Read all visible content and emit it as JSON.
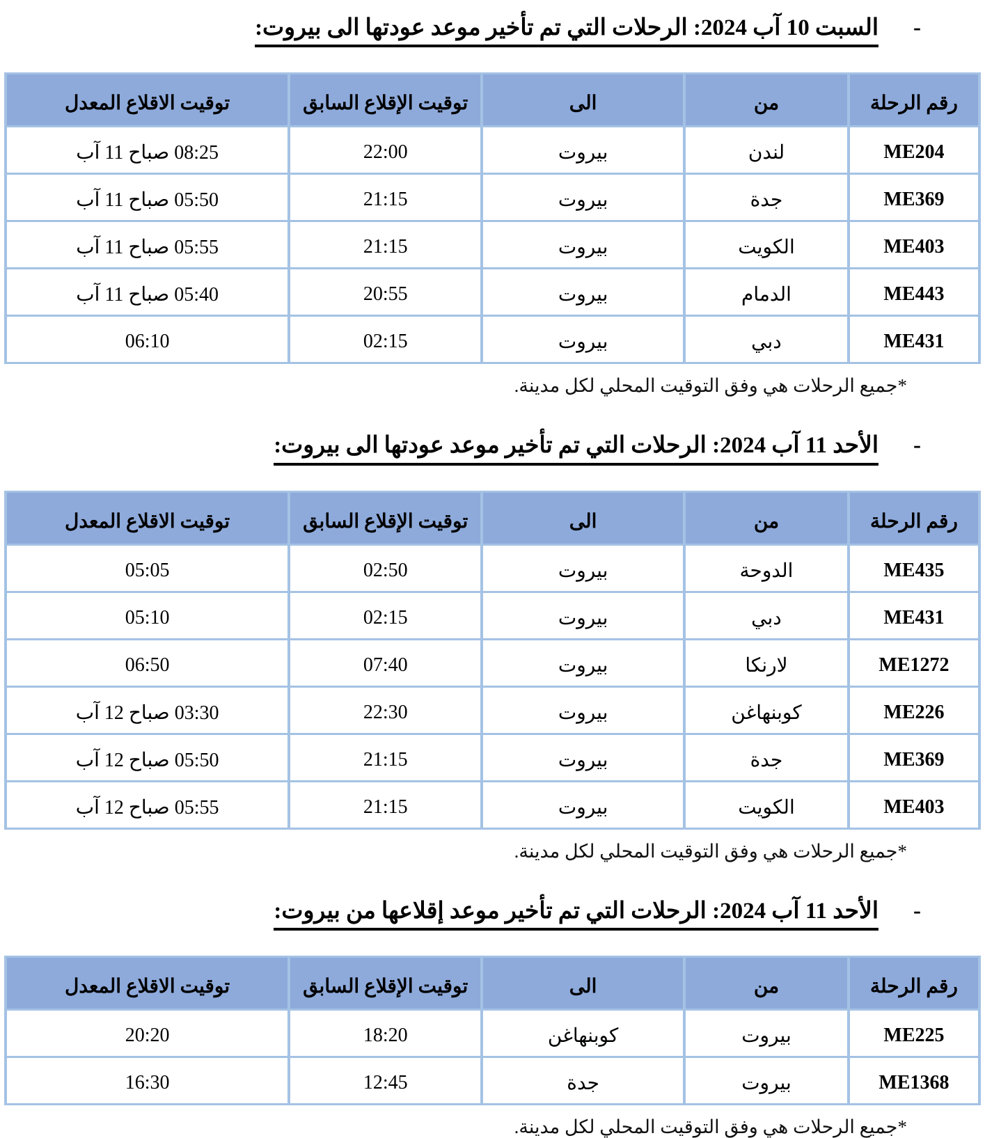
{
  "colors": {
    "header_bg": "#8EAADB",
    "border": "#A4C2E4"
  },
  "bullet": "-",
  "footnote": "*جميع الرحلات هي وفق التوقيت المحلي لكل مدينة.",
  "columns": [
    "رقم الرحلة",
    "من",
    "الى",
    "توقيت الإقلاع السابق",
    "توقيت الاقلاع المعدل"
  ],
  "sections": [
    {
      "heading": "السبت 10 آب 2024: الرحلات التي تم تأخير موعد عودتها الى بيروت:",
      "rows": [
        {
          "flight": "ME204",
          "from": "لندن",
          "to": "بيروت",
          "previous": "22:00",
          "revised": "08:25 صباح 11 آب"
        },
        {
          "flight": "ME369",
          "from": "جدة",
          "to": "بيروت",
          "previous": "21:15",
          "revised": "05:50 صباح 11 آب"
        },
        {
          "flight": "ME403",
          "from": "الكويت",
          "to": "بيروت",
          "previous": "21:15",
          "revised": "05:55 صباح 11 آب"
        },
        {
          "flight": "ME443",
          "from": "الدمام",
          "to": "بيروت",
          "previous": "20:55",
          "revised": "05:40 صباح 11 آب"
        },
        {
          "flight": "ME431",
          "from": "دبي",
          "to": "بيروت",
          "previous": "02:15",
          "revised": "06:10"
        }
      ]
    },
    {
      "heading": "الأحد 11 آب 2024: الرحلات التي تم تأخير موعد عودتها الى بيروت:",
      "rows": [
        {
          "flight": "ME435",
          "from": "الدوحة",
          "to": "بيروت",
          "previous": "02:50",
          "revised": "05:05"
        },
        {
          "flight": "ME431",
          "from": "دبي",
          "to": "بيروت",
          "previous": "02:15",
          "revised": "05:10"
        },
        {
          "flight": "ME1272",
          "from": "لارنكا",
          "to": "بيروت",
          "previous": "07:40",
          "revised": "06:50"
        },
        {
          "flight": "ME226",
          "from": "كوبنهاغن",
          "to": "بيروت",
          "previous": "22:30",
          "revised": "03:30 صباح 12 آب"
        },
        {
          "flight": "ME369",
          "from": "جدة",
          "to": "بيروت",
          "previous": "21:15",
          "revised": "05:50 صباح 12 آب"
        },
        {
          "flight": "ME403",
          "from": "الكويت",
          "to": "بيروت",
          "previous": "21:15",
          "revised": "05:55 صباح 12 آب"
        }
      ]
    },
    {
      "heading": "الأحد 11 آب 2024: الرحلات التي تم تأخير موعد إقلاعها من بيروت:",
      "rows": [
        {
          "flight": "ME225",
          "from": "بيروت",
          "to": "كوبنهاغن",
          "previous": "18:20",
          "revised": "20:20"
        },
        {
          "flight": "ME1368",
          "from": "بيروت",
          "to": "جدة",
          "previous": "12:45",
          "revised": "16:30"
        }
      ]
    }
  ]
}
